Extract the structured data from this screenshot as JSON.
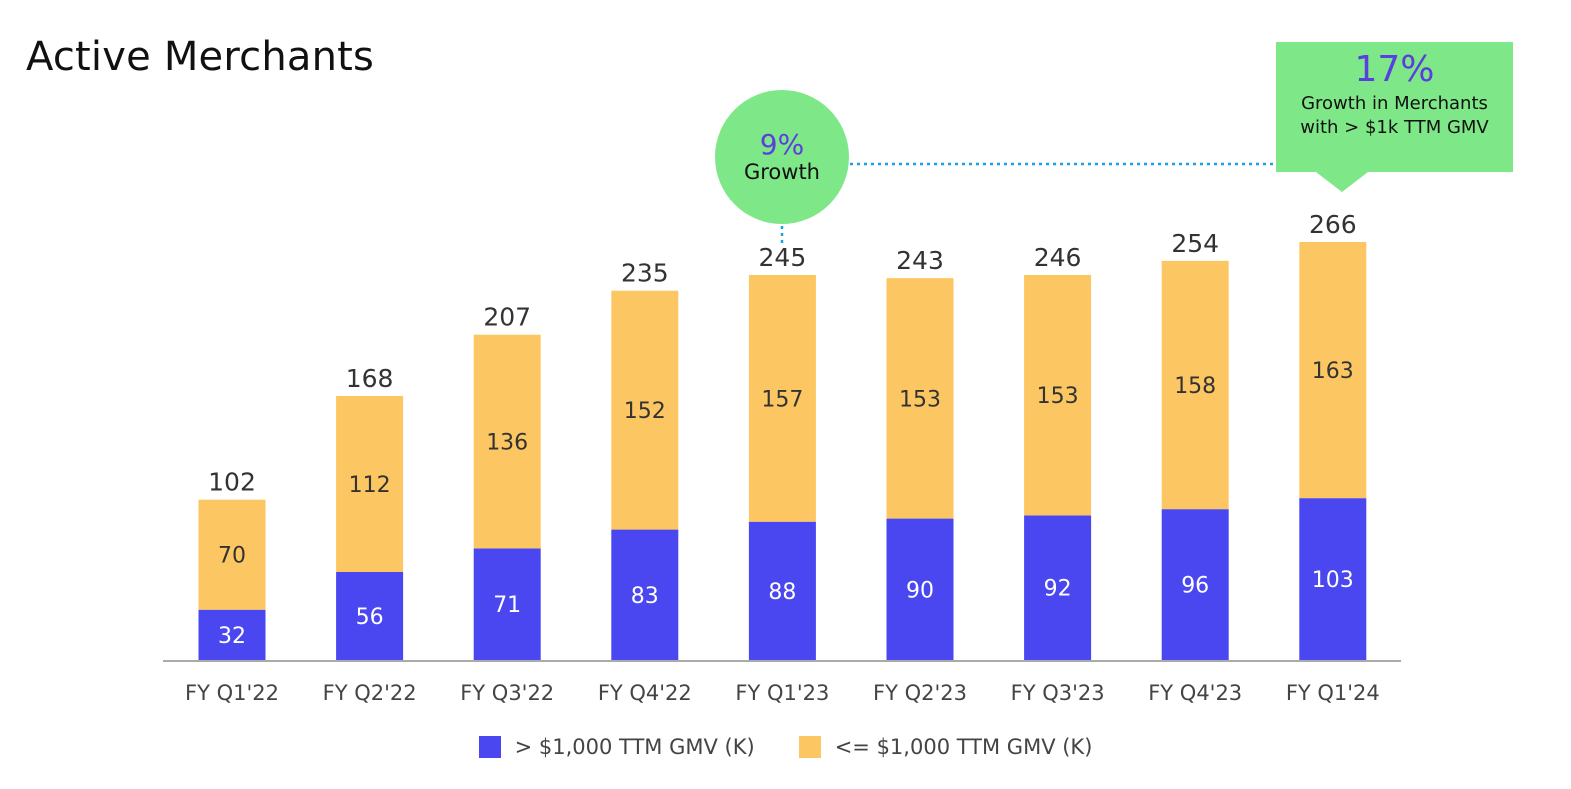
{
  "title": "Active Merchants",
  "colors": {
    "above": "#4a47f0",
    "below": "#fcc762",
    "callout_bg": "#7ee787",
    "accent_text": "#5b3ee0",
    "dotted_line": "#1aa0e8"
  },
  "chart_data": {
    "type": "bar",
    "stacked": true,
    "categories": [
      "FY Q1'22",
      "FY Q2'22",
      "FY Q3'22",
      "FY Q4'22",
      "FY Q1'23",
      "FY Q2'23",
      "FY Q3'23",
      "FY Q4'23",
      "FY Q1'24"
    ],
    "series": [
      {
        "name": "> $1,000 TTM GMV (K)",
        "values": [
          32,
          56,
          71,
          83,
          88,
          90,
          92,
          96,
          103
        ]
      },
      {
        "name": "<= $1,000 TTM GMV (K)",
        "values": [
          70,
          112,
          136,
          152,
          157,
          153,
          153,
          158,
          163
        ]
      }
    ],
    "totals": [
      102,
      168,
      207,
      235,
      245,
      243,
      246,
      254,
      266
    ],
    "ylim": [
      0,
      266
    ],
    "grid": false,
    "legend_position": "bottom"
  },
  "annotations": {
    "growth_bubble": {
      "value": "9%",
      "text": "Growth"
    },
    "callout": {
      "value": "17%",
      "text": "Growth in Merchants with > $1k TTM GMV"
    }
  }
}
